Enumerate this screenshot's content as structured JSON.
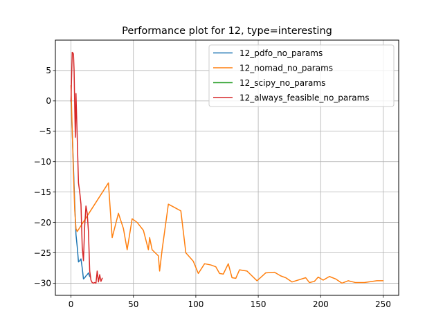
{
  "chart_data": {
    "type": "line",
    "title": "Performance plot for 12, type=interesting",
    "xlabel": "",
    "ylabel": "",
    "xlim": [
      -12.5,
      262.5
    ],
    "ylim": [
      -32,
      10
    ],
    "xticks": [
      0,
      50,
      100,
      150,
      200,
      250
    ],
    "yticks": [
      5,
      0,
      -5,
      -10,
      -15,
      -20,
      -25,
      -30
    ],
    "grid": true,
    "legend_position": "top-right",
    "series": [
      {
        "name": "12_pdfo_no_params",
        "color": "#1f77b4",
        "x": [
          0,
          1,
          2,
          3,
          4,
          5,
          6,
          7,
          8,
          9,
          10,
          11,
          12,
          13,
          14,
          15
        ],
        "y": [
          0,
          -5,
          -11,
          -17,
          -22,
          -24,
          -26.5,
          -26.3,
          -26,
          -27.5,
          -29.3,
          -29.1,
          -28.8,
          -28.6,
          -28.3,
          -28.9
        ]
      },
      {
        "name": "12_nomad_no_params",
        "color": "#ff7f0e",
        "x": [
          0,
          1,
          2,
          3,
          4,
          5,
          30,
          33,
          38,
          42,
          45,
          49,
          53,
          58,
          62,
          63,
          65,
          70,
          71,
          73,
          78,
          88,
          92,
          98,
          102,
          107,
          112,
          116,
          119,
          122,
          126,
          129,
          132,
          135,
          141,
          149,
          156,
          163,
          168,
          172,
          177,
          188,
          191,
          195,
          198,
          202,
          207,
          212,
          217,
          222,
          228,
          235,
          245,
          250
        ],
        "y": [
          2.5,
          -5,
          -12,
          -18,
          -21,
          -21.5,
          -13.5,
          -22.5,
          -18.5,
          -21,
          -24.5,
          -19.4,
          -20,
          -21.3,
          -24.5,
          -22.5,
          -24.5,
          -25.5,
          -28,
          -24.5,
          -17,
          -18.1,
          -25,
          -26.4,
          -28.4,
          -26.8,
          -27,
          -27.3,
          -28.4,
          -28.5,
          -26.8,
          -29.1,
          -29.2,
          -27.8,
          -28,
          -29.6,
          -28.3,
          -28.2,
          -28.8,
          -29.1,
          -29.8,
          -29.1,
          -29.9,
          -29.7,
          -29.0,
          -29.5,
          -28.9,
          -29.3,
          -30.0,
          -29.6,
          -29.9,
          -29.9,
          -29.6,
          -29.6
        ]
      },
      {
        "name": "12_scipy_no_params",
        "color": "#2ca02c",
        "x": [],
        "y": []
      },
      {
        "name": "12_always_feasible_no_params",
        "color": "#d62728",
        "x": [
          0,
          0.5,
          1,
          1.5,
          2,
          2.5,
          3,
          3.5,
          4,
          5,
          6,
          7,
          8,
          9,
          10,
          11,
          12,
          13,
          14,
          15,
          16,
          17,
          18,
          19,
          20,
          21,
          22,
          23,
          24,
          25
        ],
        "y": [
          0,
          4,
          8,
          7.9,
          7.7,
          5,
          -1,
          -6,
          1.2,
          -6,
          -13.5,
          -15,
          -17,
          -24,
          -26.3,
          -20.5,
          -17.3,
          -18.5,
          -21.5,
          -28,
          -29.5,
          -29.9,
          -30,
          -29.9,
          -30,
          -28,
          -29.8,
          -28.6,
          -29.7,
          -29.2
        ]
      }
    ]
  }
}
